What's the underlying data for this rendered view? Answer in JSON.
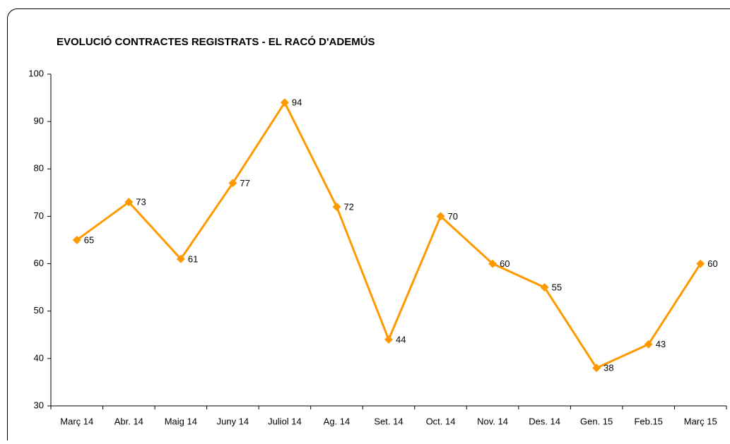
{
  "chart_data": {
    "type": "line",
    "title": "EVOLUCIÓ CONTRACTES REGISTRATS - EL RACÓ D'ADEMÚS",
    "categories": [
      "Març 14",
      "Abr. 14",
      "Maig 14",
      "Juny 14",
      "Juliol 14",
      "Ag. 14",
      "Set. 14",
      "Oct. 14",
      "Nov. 14",
      "Des. 14",
      "Gen. 15",
      "Feb.15",
      "Març 15"
    ],
    "values": [
      65,
      73,
      61,
      77,
      94,
      72,
      44,
      70,
      60,
      55,
      38,
      43,
      60
    ],
    "color": "#ff9900",
    "ylim": [
      30,
      100
    ],
    "yticks": [
      30,
      40,
      50,
      60,
      70,
      80,
      90,
      100
    ],
    "grid": false
  }
}
